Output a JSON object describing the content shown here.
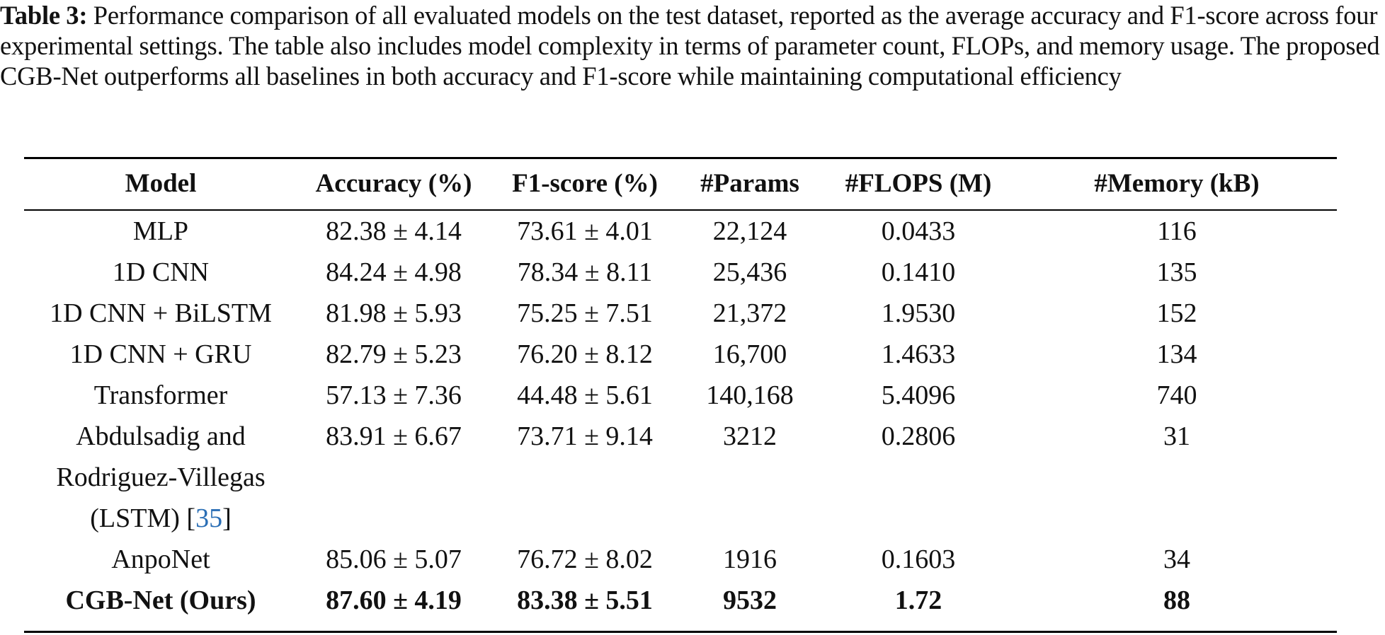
{
  "caption": {
    "label": "Table 3:",
    "text": "Performance comparison of all evaluated models on the test dataset, reported as the average accuracy and F1-score across four experimental settings. The table also includes model complexity in terms of parameter count, FLOPs, and memory usage. The proposed CGB-Net outperforms all baselines in both accuracy and F1-score while maintaining computational efficiency"
  },
  "table": {
    "headers": {
      "model": "Model",
      "accuracy": "Accuracy (%)",
      "f1": "F1-score (%)",
      "params": "#Params",
      "flops": "#FLOPS (M)",
      "memory": "#Memory (kB)"
    },
    "rows": [
      {
        "model": "MLP",
        "accuracy": "82.38 ± 4.14",
        "f1": "73.61 ± 4.01",
        "params": "22,124",
        "flops": "0.0433",
        "memory": "116"
      },
      {
        "model": "1D CNN",
        "accuracy": "84.24 ± 4.98",
        "f1": "78.34 ± 8.11",
        "params": "25,436",
        "flops": "0.1410",
        "memory": "135"
      },
      {
        "model": "1D CNN + BiLSTM",
        "accuracy": "81.98 ± 5.93",
        "f1": "75.25 ± 7.51",
        "params": "21,372",
        "flops": "1.9530",
        "memory": "152"
      },
      {
        "model": "1D CNN + GRU",
        "accuracy": "82.79 ± 5.23",
        "f1": "76.20 ± 8.12",
        "params": "16,700",
        "flops": "1.4633",
        "memory": "134"
      },
      {
        "model": "Transformer",
        "accuracy": "57.13 ± 7.36",
        "f1": "44.48 ± 5.61",
        "params": "140,168",
        "flops": "5.4096",
        "memory": "740"
      },
      {
        "model": "Abdulsadig and Rodriguez-Villegas (LSTM) [",
        "citation": "35",
        "model_suffix": "]",
        "accuracy": "83.91 ± 6.67",
        "f1": "73.71 ± 9.14",
        "params": "3212",
        "flops": "0.2806",
        "memory": "31"
      },
      {
        "model": "AnpoNet",
        "accuracy": "85.06 ± 5.07",
        "f1": "76.72 ± 8.02",
        "params": "1916",
        "flops": "0.1603",
        "memory": "34"
      },
      {
        "model": "CGB-Net (Ours)",
        "accuracy": "87.60 ± 4.19",
        "f1": "83.38 ± 5.51",
        "params": "9532",
        "flops": "1.72",
        "memory": "88"
      }
    ]
  },
  "colors": {
    "text": "#111111",
    "citation_link": "#2a6eb5",
    "rule": "#000000"
  }
}
